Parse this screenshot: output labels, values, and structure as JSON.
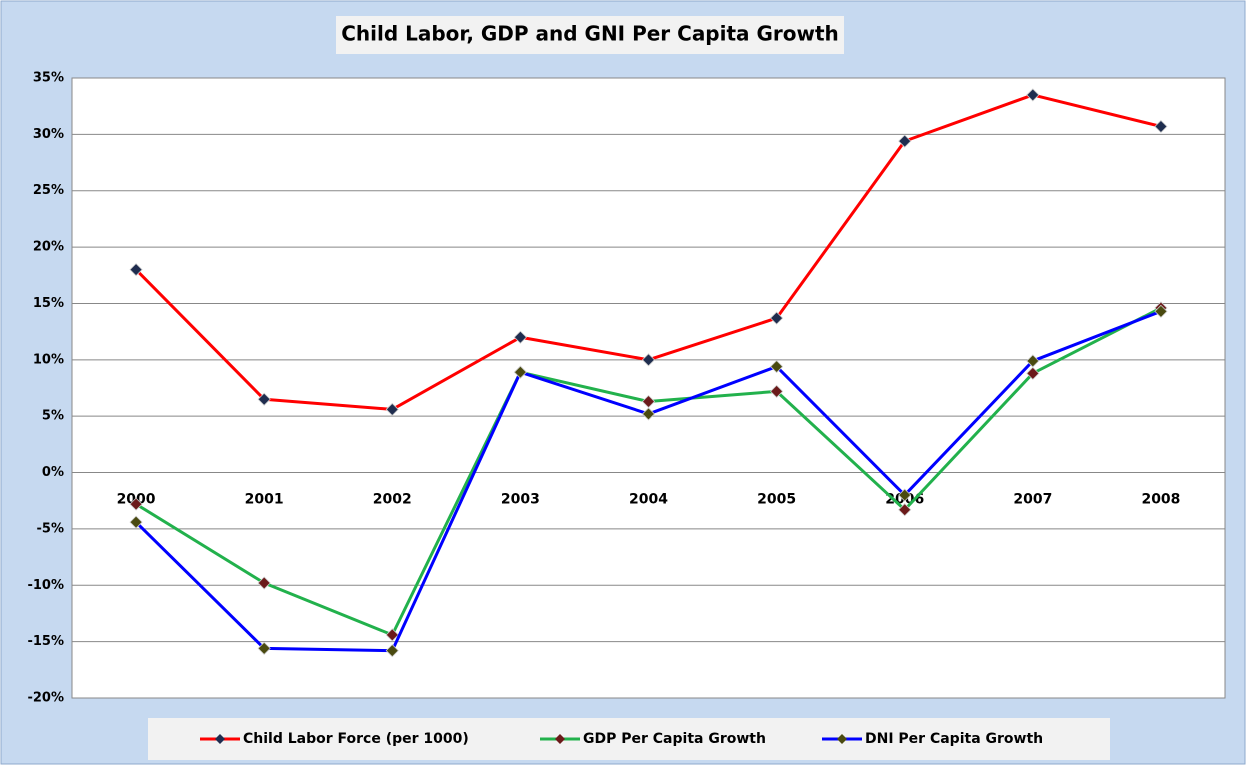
{
  "chart_data": {
    "type": "line",
    "title": "Child Labor, GDP and GNI Per Capita Growth",
    "categories": [
      "2000",
      "2001",
      "2002",
      "2003",
      "2004",
      "2005",
      "2006",
      "2007",
      "2008"
    ],
    "series": [
      {
        "name": "Child Labor Force (per 1000)",
        "color": "#ff0000",
        "marker_color": "#1f2d4f",
        "values": [
          18,
          6.5,
          5.6,
          12,
          10,
          13.7,
          29.4,
          33.5,
          30.7
        ]
      },
      {
        "name": "GDP Per Capita Growth",
        "color": "#22b14c",
        "marker_color": "#6b1a1a",
        "values": [
          -2.8,
          -9.8,
          -14.4,
          8.9,
          6.3,
          7.2,
          -3.3,
          8.8,
          14.6
        ]
      },
      {
        "name": "DNI Per Capita Growth",
        "color": "#0000ff",
        "marker_color": "#4a4a10",
        "values": [
          -4.4,
          -15.6,
          -15.8,
          8.9,
          5.2,
          9.4,
          -2,
          9.9,
          14.3
        ]
      }
    ],
    "ylim": [
      -20,
      35
    ],
    "yticks": [
      {
        "value": -20,
        "label": "-20%"
      },
      {
        "value": -15,
        "label": "-15%"
      },
      {
        "value": -10,
        "label": "-10%"
      },
      {
        "value": -5,
        "label": "-5%"
      },
      {
        "value": 0,
        "label": "0%"
      },
      {
        "value": 5,
        "label": "5%"
      },
      {
        "value": 10,
        "label": "10%"
      },
      {
        "value": 15,
        "label": "15%"
      },
      {
        "value": 20,
        "label": "20%"
      },
      {
        "value": 25,
        "label": "25%"
      },
      {
        "value": 30,
        "label": "30%"
      },
      {
        "value": 35,
        "label": "35%"
      }
    ],
    "grid": true,
    "legend": "bottom"
  }
}
